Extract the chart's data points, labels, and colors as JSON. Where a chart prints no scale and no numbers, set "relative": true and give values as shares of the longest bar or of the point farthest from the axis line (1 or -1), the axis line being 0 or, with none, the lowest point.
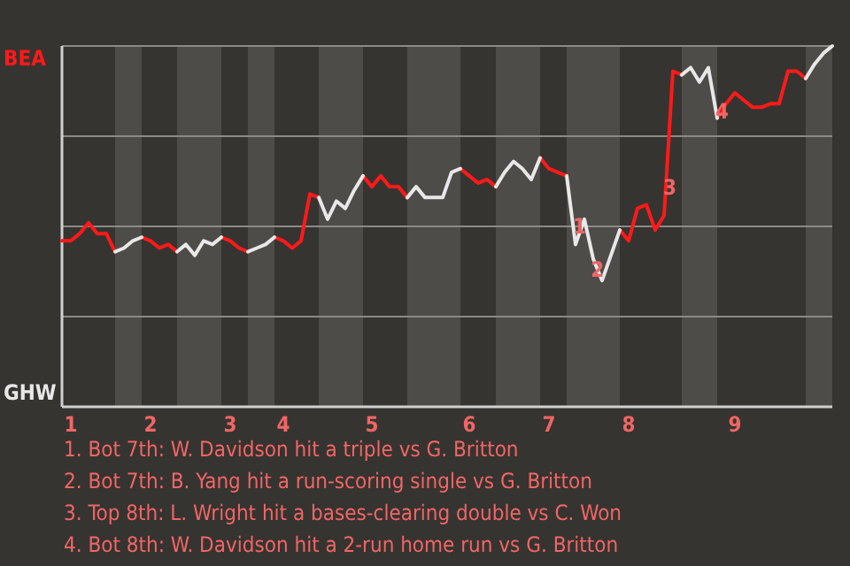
{
  "chart_data": {
    "type": "line",
    "relative": true,
    "categories": [
      null,
      "1",
      null,
      null,
      null,
      null,
      null,
      null,
      null,
      null,
      "2",
      null,
      null,
      null,
      null,
      null,
      null,
      null,
      null,
      "3",
      null,
      null,
      null,
      null,
      null,
      "4",
      null,
      null,
      null,
      null,
      null,
      null,
      null,
      null,
      null,
      "5",
      null,
      null,
      null,
      null,
      null,
      null,
      null,
      null,
      null,
      null,
      "6",
      null,
      null,
      null,
      null,
      null,
      null,
      null,
      null,
      "7",
      null,
      null,
      null,
      null,
      null,
      null,
      null,
      null,
      "8",
      null,
      null,
      null,
      null,
      null,
      null,
      null,
      null,
      null,
      null,
      null,
      "9",
      null,
      null,
      null,
      null,
      null,
      null,
      null,
      null,
      null,
      null,
      null
    ],
    "grid": "y",
    "legend": "left",
    "marker": "none",
    "line_style": "solid",
    "series": [
      {
        "name": "BEA",
        "color": "#ff1a1a",
        "values": [
          0.46,
          0.46,
          0.48,
          0.51,
          0.48,
          0.48,
          0.43,
          null,
          null,
          0.47,
          0.46,
          0.44,
          0.45,
          0.43,
          null,
          null,
          null,
          null,
          0.47,
          0.46,
          0.44,
          0.43,
          null,
          null,
          0.47,
          0.46,
          0.44,
          0.46,
          0.59,
          0.58,
          null,
          null,
          null,
          null,
          0.64,
          0.61,
          0.64,
          0.61,
          0.61,
          0.58,
          null,
          null,
          null,
          null,
          null,
          0.66,
          0.64,
          0.62,
          0.63,
          0.61,
          null,
          null,
          null,
          null,
          0.69,
          0.66,
          0.65,
          0.64,
          null,
          null,
          null,
          null,
          null,
          0.49,
          0.46,
          0.55,
          0.56,
          0.49,
          0.53,
          0.93,
          0.92,
          null,
          null,
          null,
          0.8,
          0.84,
          0.87,
          0.85,
          0.83,
          0.83,
          0.84,
          0.84,
          0.93,
          0.93,
          0.91,
          null,
          null,
          null
        ]
      },
      {
        "name": "GHW",
        "color": "#e8e8e8",
        "values": [
          null,
          null,
          null,
          null,
          null,
          null,
          0.43,
          0.44,
          0.46,
          0.47,
          null,
          null,
          null,
          0.43,
          0.45,
          0.42,
          0.46,
          0.45,
          0.47,
          null,
          null,
          0.43,
          0.44,
          0.45,
          0.47,
          null,
          null,
          null,
          null,
          0.58,
          0.52,
          0.57,
          0.55,
          0.6,
          0.64,
          null,
          null,
          null,
          null,
          0.58,
          0.61,
          0.58,
          0.58,
          0.58,
          0.65,
          0.66,
          null,
          null,
          null,
          0.61,
          0.65,
          0.68,
          0.66,
          0.63,
          0.69,
          null,
          null,
          0.64,
          0.45,
          0.52,
          0.41,
          0.35,
          0.42,
          0.49,
          null,
          null,
          null,
          null,
          null,
          null,
          0.92,
          0.94,
          0.9,
          0.94,
          0.8,
          null,
          null,
          null,
          null,
          null,
          null,
          null,
          null,
          null,
          0.91,
          0.95,
          0.98,
          1.0
        ]
      }
    ],
    "annotations": [
      {
        "text": "1",
        "y": 0.5
      },
      {
        "text": "2",
        "y": 0.38
      },
      {
        "text": "3",
        "y": 0.61
      },
      {
        "text": "4",
        "y": 0.82
      },
      "1. Bot 7th: W. Davidson hit a triple vs G. Britton",
      "2. Bot 7th: B. Yang hit a run-scoring single vs G. Britton",
      "3. Top 8th: L. Wright hit a bases-clearing double vs C. Won",
      "4. Bot 8th: W. Davidson hit a 2-run home run vs G. Britton"
    ]
  }
}
